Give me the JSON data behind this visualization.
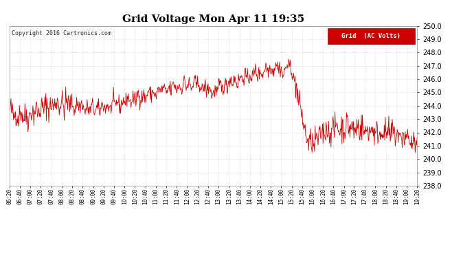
{
  "title": "Grid Voltage Mon Apr 11 19:35",
  "copyright": "Copyright 2016 Cartronics.com",
  "legend_label": "Grid  (AC Volts)",
  "line_color": "#cc0000",
  "legend_bg": "#cc0000",
  "legend_text_color": "#ffffff",
  "bg_color": "#ffffff",
  "plot_bg_color": "#ffffff",
  "grid_color": "#c0c0c0",
  "ylim": [
    238.0,
    250.0
  ],
  "yticks": [
    238.0,
    239.0,
    240.0,
    241.0,
    242.0,
    243.0,
    244.0,
    245.0,
    246.0,
    247.0,
    248.0,
    249.0,
    250.0
  ],
  "xtick_labels": [
    "06:20",
    "06:40",
    "07:00",
    "07:20",
    "07:40",
    "08:00",
    "08:20",
    "08:40",
    "09:00",
    "09:20",
    "09:40",
    "10:00",
    "10:20",
    "10:40",
    "11:00",
    "11:20",
    "11:40",
    "12:00",
    "12:20",
    "12:40",
    "13:00",
    "13:20",
    "13:40",
    "14:00",
    "14:20",
    "14:40",
    "15:00",
    "15:20",
    "15:40",
    "16:00",
    "16:20",
    "16:40",
    "17:00",
    "17:20",
    "17:40",
    "18:00",
    "18:20",
    "18:40",
    "19:00",
    "19:20"
  ],
  "seed": 42,
  "n_points": 820
}
